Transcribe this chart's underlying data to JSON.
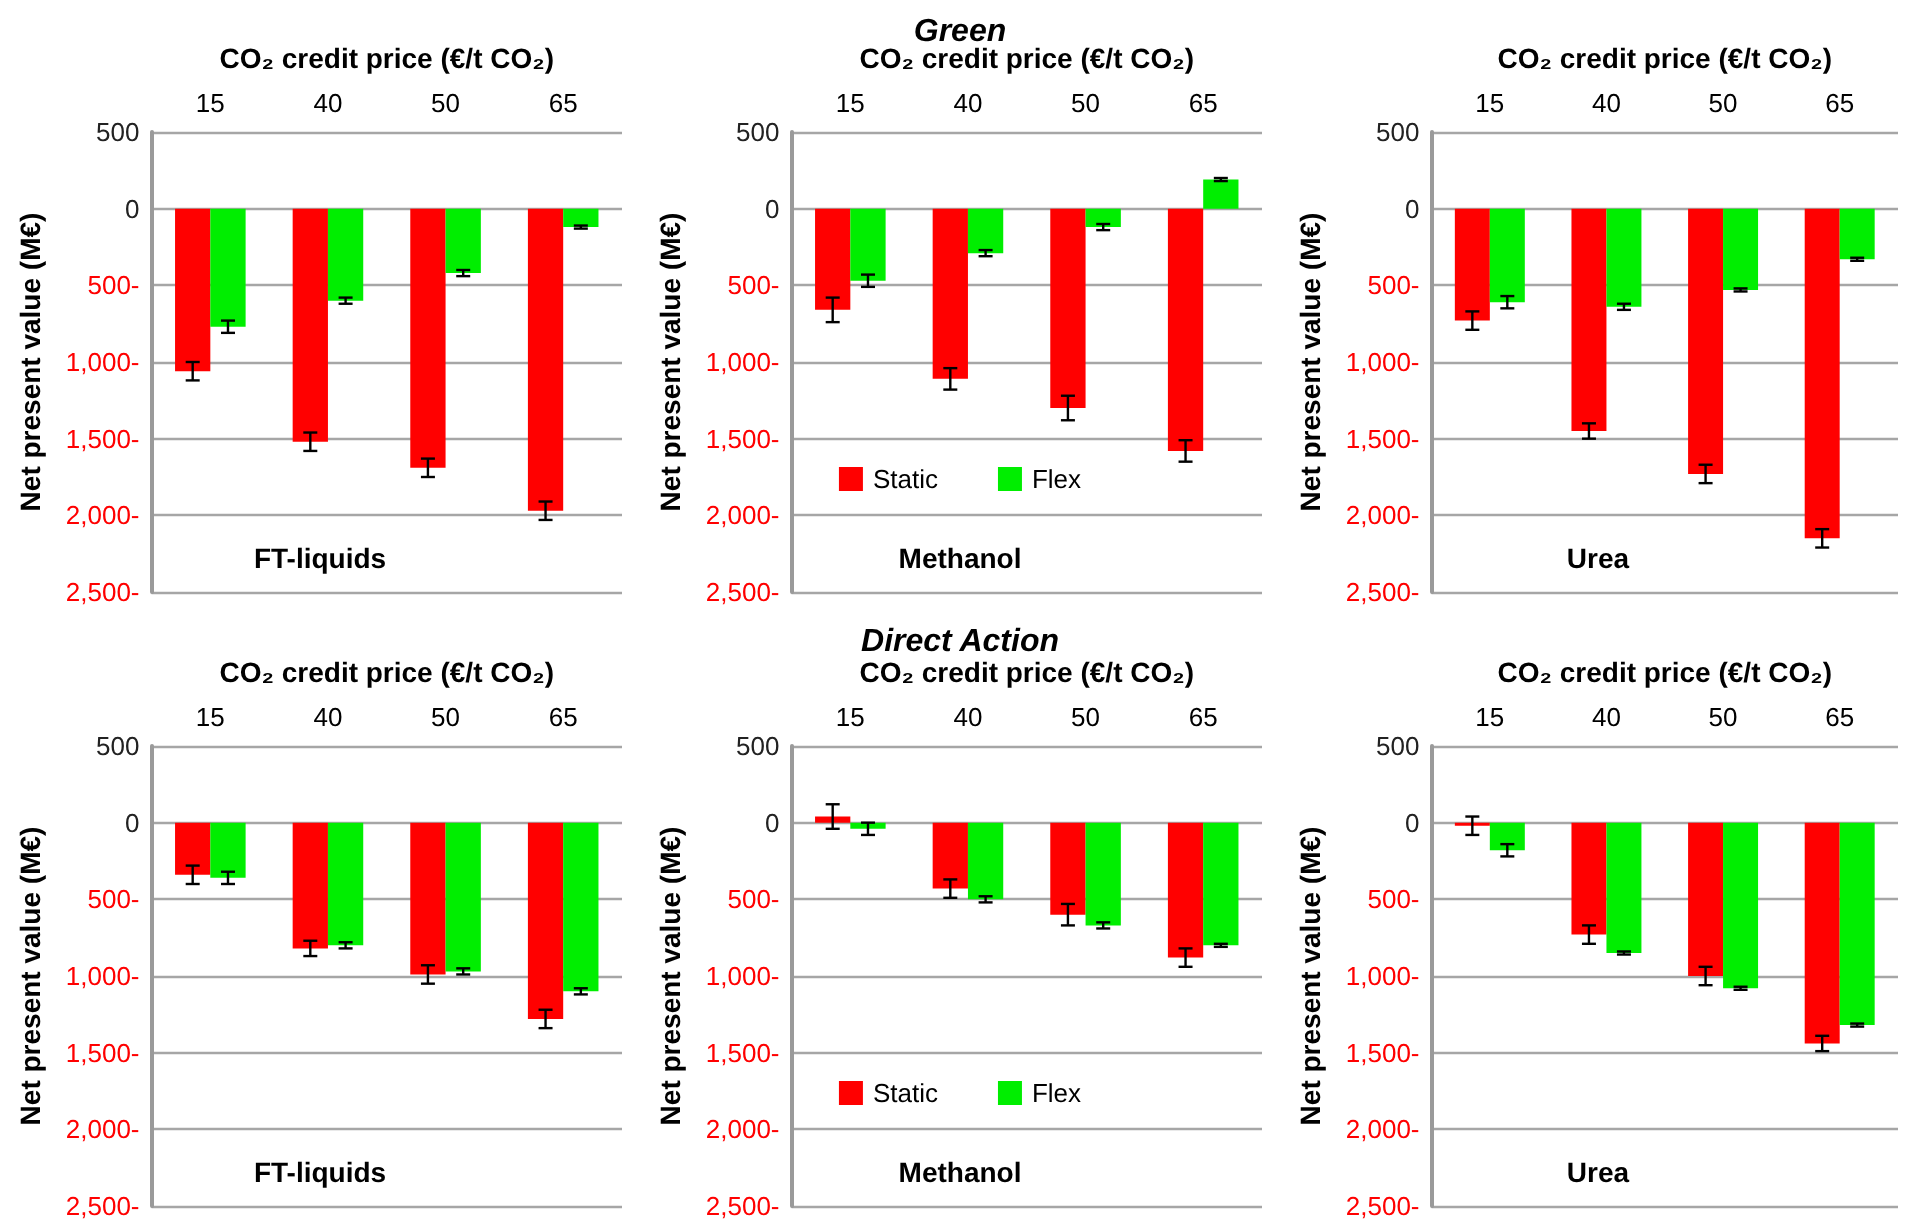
{
  "chart_data": [
    {
      "type": "bar",
      "xlabel": "CO₂ credit price (€/t CO₂)",
      "ylabel": "Net present value (M€)",
      "categories": [
        "15",
        "40",
        "50",
        "65"
      ],
      "series": [
        {
          "color": "#ff0000",
          "values": [
            -1060,
            -1520,
            -1690,
            -1970
          ],
          "errors": [
            60,
            60,
            60,
            60
          ]
        },
        {
          "color": "#00ee00",
          "values": [
            -770,
            -600,
            -420,
            -120
          ],
          "errors": [
            40,
            20,
            20,
            10
          ]
        }
      ],
      "ylim": [
        -2500,
        500
      ],
      "yticks": [
        {
          "value": -2500,
          "label": "2,500-"
        },
        {
          "value": -2000,
          "label": "2,000-"
        },
        {
          "value": -1500,
          "label": "1,500-"
        },
        {
          "value": -1000,
          "label": "1,000-"
        },
        {
          "value": -500,
          "label": "500-"
        },
        {
          "value": 0,
          "label": "0"
        },
        {
          "value": 500,
          "label": "500"
        }
      ],
      "grid": "y",
      "annotations": [
        "FT-liquids"
      ]
    },
    {
      "type": "bar",
      "title": "Green",
      "xlabel": "CO₂ credit price (€/t CO₂)",
      "ylabel": "Net present value (M€)",
      "categories": [
        "15",
        "40",
        "50",
        "65"
      ],
      "series": [
        {
          "name": "Static",
          "color": "#ff0000",
          "values": [
            -660,
            -1110,
            -1300,
            -1580
          ],
          "errors": [
            80,
            70,
            80,
            70
          ]
        },
        {
          "name": "Flex",
          "color": "#00ee00",
          "values": [
            -470,
            -290,
            -120,
            190
          ],
          "errors": [
            40,
            20,
            20,
            10
          ]
        }
      ],
      "ylim": [
        -2500,
        500
      ],
      "yticks": [
        {
          "value": -2500,
          "label": "2,500-"
        },
        {
          "value": -2000,
          "label": "2,000-"
        },
        {
          "value": -1500,
          "label": "1,500-"
        },
        {
          "value": -1000,
          "label": "1,000-"
        },
        {
          "value": -500,
          "label": "500-"
        },
        {
          "value": 0,
          "label": "0"
        },
        {
          "value": 500,
          "label": "500"
        }
      ],
      "grid": "y",
      "legend": "bottom",
      "annotations": [
        "Methanol"
      ]
    },
    {
      "type": "bar",
      "xlabel": "CO₂ credit price (€/t CO₂)",
      "ylabel": "Net present value (M€)",
      "categories": [
        "15",
        "40",
        "50",
        "65"
      ],
      "series": [
        {
          "color": "#ff0000",
          "values": [
            -730,
            -1450,
            -1730,
            -2150
          ],
          "errors": [
            60,
            50,
            60,
            60
          ]
        },
        {
          "color": "#00ee00",
          "values": [
            -610,
            -640,
            -530,
            -330
          ],
          "errors": [
            40,
            20,
            10,
            10
          ]
        }
      ],
      "ylim": [
        -2500,
        500
      ],
      "yticks": [
        {
          "value": -2500,
          "label": "2,500-"
        },
        {
          "value": -2000,
          "label": "2,000-"
        },
        {
          "value": -1500,
          "label": "1,500-"
        },
        {
          "value": -1000,
          "label": "1,000-"
        },
        {
          "value": -500,
          "label": "500-"
        },
        {
          "value": 0,
          "label": "0"
        },
        {
          "value": 500,
          "label": "500"
        }
      ],
      "grid": "y",
      "annotations": [
        "Urea"
      ]
    },
    {
      "type": "bar",
      "xlabel": "CO₂ credit price (€/t CO₂)",
      "ylabel": "Net present value (M€)",
      "categories": [
        "15",
        "40",
        "50",
        "65"
      ],
      "series": [
        {
          "color": "#ff0000",
          "values": [
            -340,
            -820,
            -990,
            -1280
          ],
          "errors": [
            60,
            50,
            60,
            60
          ]
        },
        {
          "color": "#00ee00",
          "values": [
            -360,
            -800,
            -970,
            -1100
          ],
          "errors": [
            40,
            20,
            20,
            20
          ]
        }
      ],
      "ylim": [
        -2500,
        500
      ],
      "yticks": [
        {
          "value": -2500,
          "label": "2,500-"
        },
        {
          "value": -2000,
          "label": "2,000-"
        },
        {
          "value": -1500,
          "label": "1,500-"
        },
        {
          "value": -1000,
          "label": "1,000-"
        },
        {
          "value": -500,
          "label": "500-"
        },
        {
          "value": 0,
          "label": "0"
        },
        {
          "value": 500,
          "label": "500"
        }
      ],
      "grid": "y",
      "annotations": [
        "FT-liquids"
      ]
    },
    {
      "type": "bar",
      "title": "Direct Action",
      "xlabel": "CO₂ credit price (€/t CO₂)",
      "ylabel": "Net present value (M€)",
      "categories": [
        "15",
        "40",
        "50",
        "65"
      ],
      "series": [
        {
          "name": "Static",
          "color": "#ff0000",
          "values": [
            40,
            -430,
            -600,
            -880
          ],
          "errors": [
            80,
            60,
            70,
            60
          ]
        },
        {
          "name": "Flex",
          "color": "#00ee00",
          "values": [
            -40,
            -500,
            -670,
            -800
          ],
          "errors": [
            40,
            20,
            20,
            10
          ]
        }
      ],
      "ylim": [
        -2500,
        500
      ],
      "yticks": [
        {
          "value": -2500,
          "label": "2,500-"
        },
        {
          "value": -2000,
          "label": "2,000-"
        },
        {
          "value": -1500,
          "label": "1,500-"
        },
        {
          "value": -1000,
          "label": "1,000-"
        },
        {
          "value": -500,
          "label": "500-"
        },
        {
          "value": 0,
          "label": "0"
        },
        {
          "value": 500,
          "label": "500"
        }
      ],
      "grid": "y",
      "legend": "bottom",
      "annotations": [
        "Methanol"
      ]
    },
    {
      "type": "bar",
      "xlabel": "CO₂ credit price (€/t CO₂)",
      "ylabel": "Net present value (M€)",
      "categories": [
        "15",
        "40",
        "50",
        "65"
      ],
      "series": [
        {
          "color": "#ff0000",
          "values": [
            -20,
            -730,
            -1000,
            -1440
          ],
          "errors": [
            60,
            60,
            60,
            50
          ]
        },
        {
          "color": "#00ee00",
          "values": [
            -180,
            -850,
            -1080,
            -1320
          ],
          "errors": [
            40,
            10,
            10,
            10
          ]
        }
      ],
      "ylim": [
        -2500,
        500
      ],
      "yticks": [
        {
          "value": -2500,
          "label": "2,500-"
        },
        {
          "value": -2000,
          "label": "2,000-"
        },
        {
          "value": -1500,
          "label": "1,500-"
        },
        {
          "value": -1000,
          "label": "1,000-"
        },
        {
          "value": -500,
          "label": "500-"
        },
        {
          "value": 0,
          "label": "0"
        },
        {
          "value": 500,
          "label": "500"
        }
      ],
      "grid": "y",
      "annotations": [
        "Urea"
      ]
    }
  ]
}
